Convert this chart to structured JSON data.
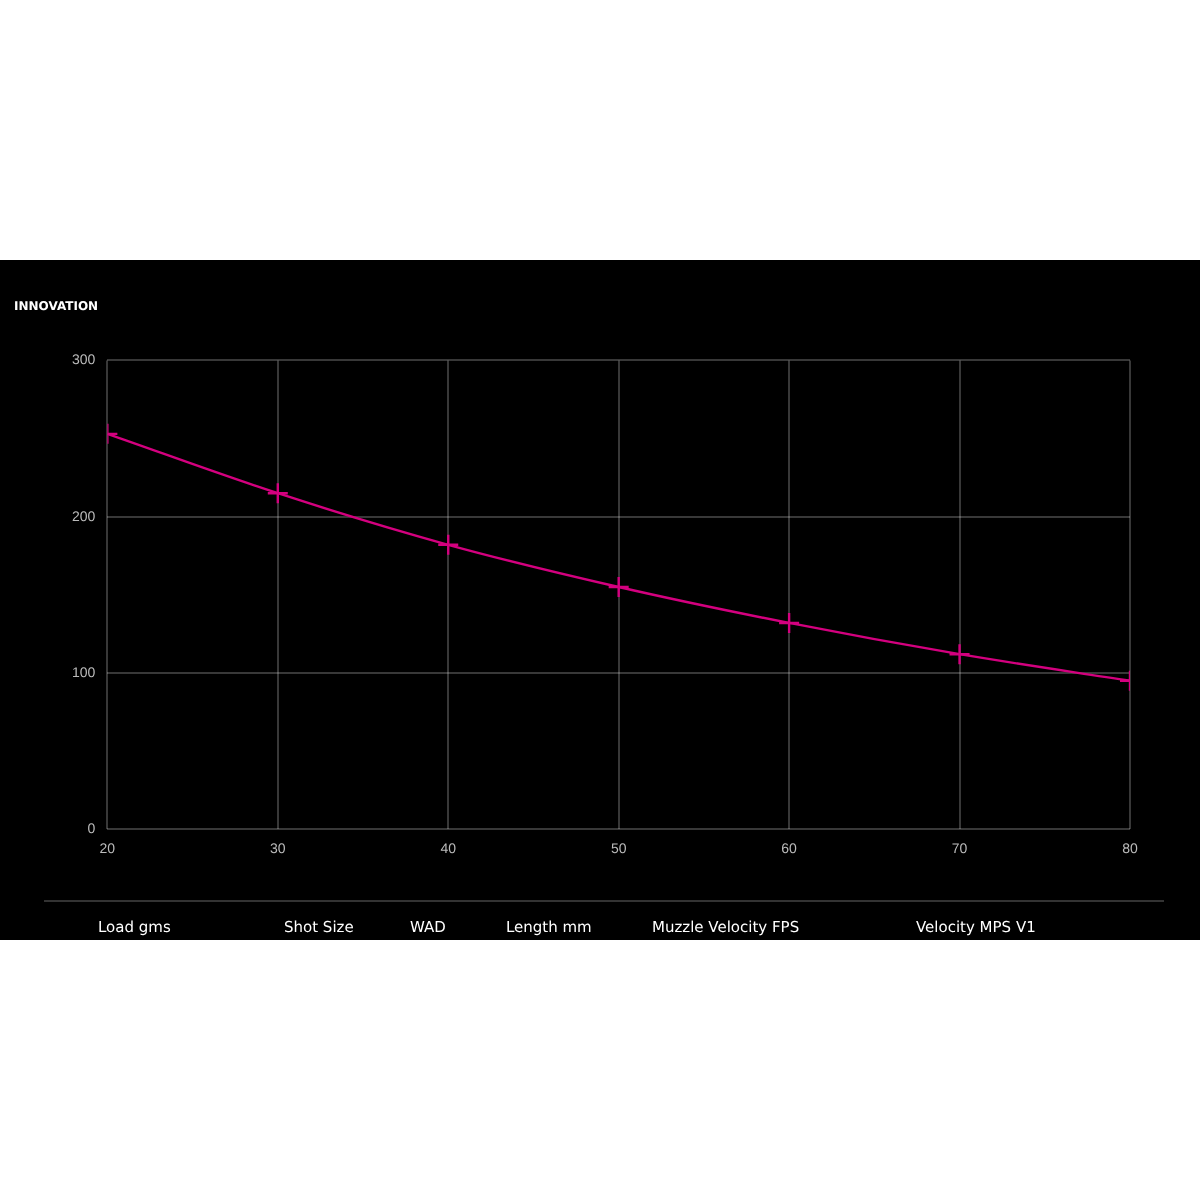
{
  "chart_data": {
    "type": "line",
    "x": [
      20,
      30,
      40,
      50,
      60,
      70,
      80
    ],
    "series": [
      {
        "color": "#d4007f",
        "values": [
          253,
          215,
          182,
          155,
          132,
          112,
          95
        ]
      }
    ],
    "xlim": [
      20,
      80
    ],
    "xticks": [
      20,
      30,
      40,
      50,
      60,
      70,
      80
    ],
    "ylim": [
      0,
      300
    ],
    "yticks": [
      0,
      100,
      200,
      300
    ],
    "grid": true,
    "legend": false,
    "marker": "cross",
    "line_style": "solid",
    "annotations": [
      "INNOVATION",
      "Load gms",
      "Shot Size",
      "WAD",
      "Length mm",
      "Muzzle Velocity FPS",
      "Velocity MPS V1"
    ]
  }
}
